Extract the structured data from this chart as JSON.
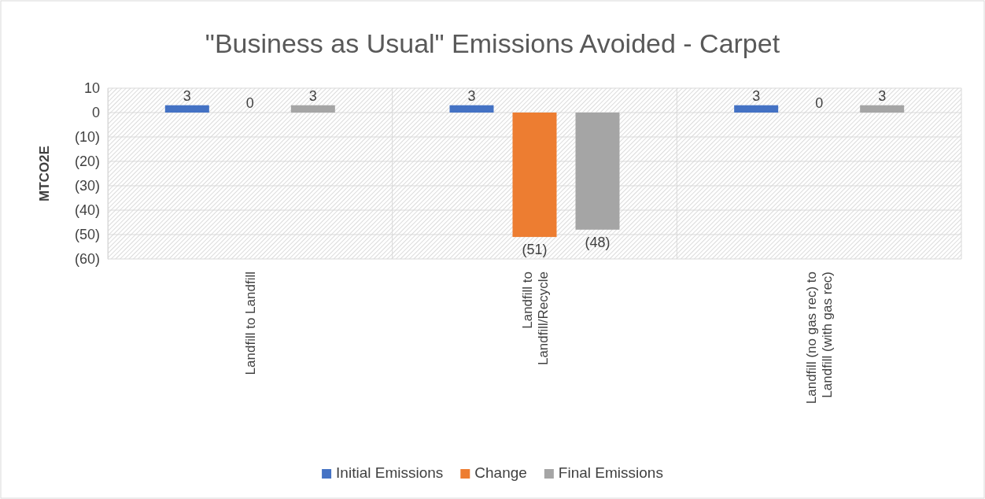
{
  "chart_data": {
    "type": "bar",
    "title": "\"Business as Usual\" Emissions Avoided - Carpet",
    "ylabel": "MTCO2E",
    "categories": [
      "Landfill to Landfill",
      "Landfill to Landfill/Recycle",
      "Landfill (no gas rec) to Landfill (with gas rec)"
    ],
    "series": [
      {
        "name": "Initial Emissions",
        "color": "#4472c4",
        "values": [
          3,
          3,
          3
        ],
        "value_labels": [
          "3",
          "3",
          "3"
        ]
      },
      {
        "name": "Change",
        "color": "#ed7d31",
        "values": [
          0,
          -51,
          0
        ],
        "value_labels": [
          "0",
          "(51)",
          "0"
        ]
      },
      {
        "name": "Final Emissions",
        "color": "#a5a5a5",
        "values": [
          3,
          -48,
          3
        ],
        "value_labels": [
          "3",
          "(48)",
          "3"
        ]
      }
    ],
    "ylim": [
      -60,
      10
    ],
    "yticks": [
      10,
      0,
      {
        "value": -10,
        "label": "(10)"
      },
      {
        "value": -20,
        "label": "(20)"
      },
      {
        "value": -30,
        "label": "(30)"
      },
      {
        "value": -40,
        "label": "(40)"
      },
      {
        "value": -50,
        "label": "(50)"
      },
      {
        "value": -60,
        "label": "(60)"
      }
    ],
    "grid": true,
    "legend": "bottom"
  }
}
